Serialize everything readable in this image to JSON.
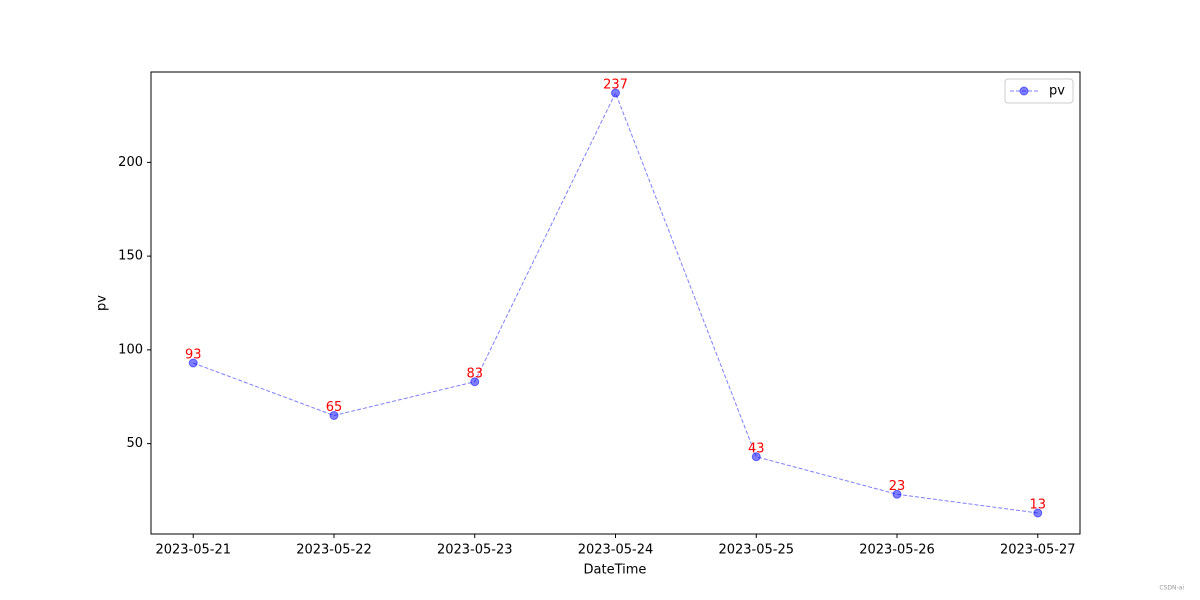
{
  "chart_data": {
    "type": "line",
    "categories": [
      "2023-05-21",
      "2023-05-22",
      "2023-05-23",
      "2023-05-24",
      "2023-05-25",
      "2023-05-26",
      "2023-05-27"
    ],
    "series": [
      {
        "name": "pv",
        "color": "#0000ff",
        "values": [
          93,
          65,
          83,
          237,
          43,
          23,
          13
        ]
      }
    ],
    "xlabel": "DateTime",
    "ylabel": "pv",
    "ylim": [
      1.8,
      248.2
    ],
    "yticks": [
      50,
      100,
      150,
      200
    ],
    "legend": "upper right",
    "data_label_color": "#ff0000",
    "line_style": "dashed",
    "watermark": "CSDN-ai"
  }
}
